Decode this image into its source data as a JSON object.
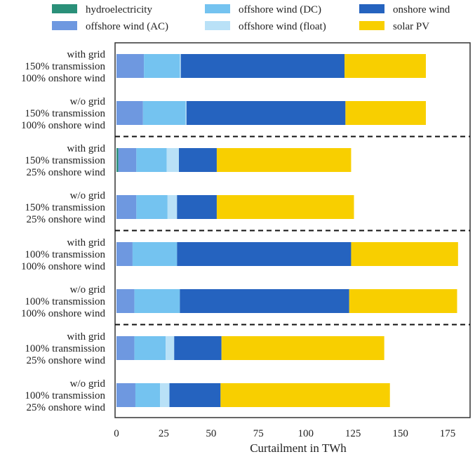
{
  "chart_data": {
    "type": "bar",
    "orientation": "horizontal",
    "stacked": true,
    "xlabel": "Curtailment in TWh",
    "xlim": [
      0,
      190
    ],
    "xticks": [
      0,
      25,
      50,
      75,
      100,
      125,
      150,
      175
    ],
    "categories": [
      [
        "with grid",
        "150% transmission",
        "100% onshore wind"
      ],
      [
        "w/o grid",
        "150% transmission",
        "100% onshore wind"
      ],
      [
        "with grid",
        "150% transmission",
        "25% onshore wind"
      ],
      [
        "w/o grid",
        "150% transmission",
        "25% onshore wind"
      ],
      [
        "with grid",
        "100% transmission",
        "100% onshore wind"
      ],
      [
        "w/o grid",
        "100% transmission",
        "100% onshore wind"
      ],
      [
        "with grid",
        "100% transmission",
        "25% onshore wind"
      ],
      [
        "w/o grid",
        "100% transmission",
        "25% onshore wind"
      ]
    ],
    "separators_after": [
      1,
      3,
      5
    ],
    "legend_position": "top",
    "series": [
      {
        "name": "hydroelectricity",
        "color": "#2a9079",
        "values": [
          0,
          0,
          1,
          0,
          0,
          0,
          0,
          0
        ]
      },
      {
        "name": "offshore wind (AC)",
        "color": "#6e98e0",
        "values": [
          14.5,
          14,
          9.5,
          10.5,
          8.5,
          9.5,
          9.5,
          10
        ]
      },
      {
        "name": "offshore wind (DC)",
        "color": "#74c3f0",
        "values": [
          19,
          22.5,
          16,
          16.5,
          23.5,
          24,
          16.5,
          13
        ]
      },
      {
        "name": "offshore wind (float)",
        "color": "#b9e1f7",
        "values": [
          0.5,
          0.5,
          6.5,
          5,
          0,
          0,
          4.5,
          5
        ]
      },
      {
        "name": "onshore wind",
        "color": "#2563bf",
        "values": [
          86.5,
          84,
          20,
          21,
          92,
          89.5,
          25,
          27
        ]
      },
      {
        "name": "solar PV",
        "color": "#f8cf00",
        "values": [
          43,
          42.5,
          71,
          72.5,
          56.5,
          57,
          86,
          89.5
        ]
      }
    ]
  }
}
